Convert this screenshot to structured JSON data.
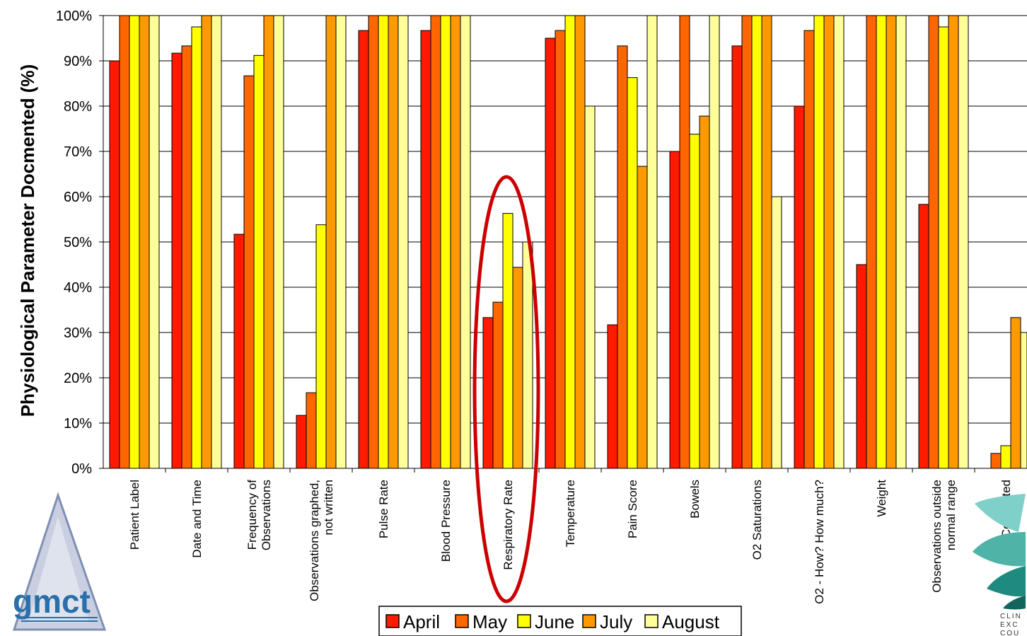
{
  "chart_data": {
    "type": "bar",
    "ylabel": "Physiological Parameter Docmented (%)",
    "ylim": [
      0,
      100
    ],
    "yticks": [
      "0%",
      "10%",
      "20%",
      "30%",
      "40%",
      "50%",
      "60%",
      "70%",
      "80%",
      "90%",
      "100%"
    ],
    "grid": true,
    "legend_position": "bottom",
    "categories": [
      [
        "Patient Label"
      ],
      [
        "Date and Time"
      ],
      [
        "Frequency of",
        "Observations"
      ],
      [
        "Observations graphed,",
        "not written"
      ],
      [
        "Pulse Rate"
      ],
      [
        "Blood Pressure"
      ],
      [
        "Respiratory Rate"
      ],
      [
        "Temperature"
      ],
      [
        "Pain Score"
      ],
      [
        "Bowels"
      ],
      [
        "O2 Saturations"
      ],
      [
        "O2 - How? How much?"
      ],
      [
        "Weight"
      ],
      [
        "Observations outside",
        "normal range"
      ],
      [
        "Completed"
      ]
    ],
    "series": [
      {
        "name": "April",
        "color": "#ff1a00",
        "values": [
          90,
          91.7,
          51.7,
          11.7,
          96.7,
          96.7,
          33.3,
          95,
          31.7,
          70,
          93.3,
          80,
          45,
          58.3,
          0
        ]
      },
      {
        "name": "May",
        "color": "#ff6600",
        "values": [
          100,
          93.3,
          86.7,
          16.7,
          100,
          100,
          36.7,
          96.7,
          93.3,
          100,
          100,
          96.7,
          100,
          100,
          3.3
        ]
      },
      {
        "name": "June",
        "color": "#ffff00",
        "values": [
          100,
          97.5,
          91.2,
          53.8,
          100,
          100,
          56.3,
          100,
          86.3,
          73.8,
          100,
          100,
          100,
          97.5,
          5
        ]
      },
      {
        "name": "July",
        "color": "#ff9900",
        "values": [
          100,
          100,
          100,
          100,
          100,
          100,
          44.4,
          100,
          66.7,
          77.8,
          100,
          100,
          100,
          100,
          33.3
        ]
      },
      {
        "name": "August",
        "color": "#ffff99",
        "values": [
          100,
          100,
          100,
          100,
          100,
          100,
          50,
          80,
          100,
          100,
          60,
          100,
          100,
          100,
          30
        ]
      }
    ],
    "annotations": [
      {
        "type": "ellipse",
        "category": "Respiratory Rate",
        "color": "#cc0000"
      }
    ]
  },
  "logos": {
    "left": {
      "text": "gmct"
    },
    "right": {
      "text_lines": [
        "CLIN",
        "EXC",
        "COU"
      ]
    }
  }
}
